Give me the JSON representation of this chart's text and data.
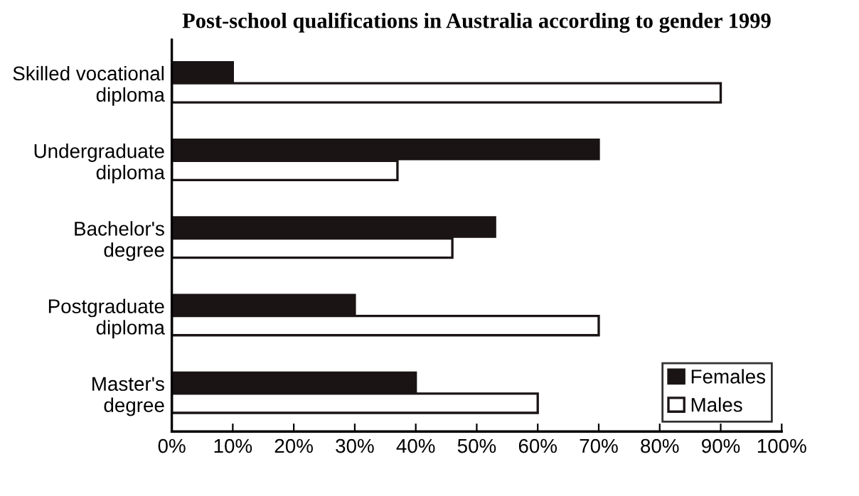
{
  "chart_data": {
    "type": "bar",
    "orientation": "horizontal",
    "title": "Post-school qualifications in Australia according to gender 1999",
    "categories": [
      "Skilled vocational\ndiploma",
      "Undergraduate\ndiploma",
      "Bachelor's\ndegree",
      "Postgraduate\ndiploma",
      "Master's\ndegree"
    ],
    "series": [
      {
        "name": "Females",
        "color": "#1a1414",
        "values": [
          10,
          70,
          53,
          30,
          40
        ]
      },
      {
        "name": "Males",
        "color": "#ffffff",
        "values": [
          90,
          37,
          46,
          70,
          60
        ]
      }
    ],
    "xlim": [
      0,
      100
    ],
    "xticks": [
      {
        "value": 0,
        "label": "0%"
      },
      {
        "value": 10,
        "label": "10%"
      },
      {
        "value": 20,
        "label": "20%"
      },
      {
        "value": 30,
        "label": "30%"
      },
      {
        "value": 40,
        "label": "40%"
      },
      {
        "value": 50,
        "label": "50%"
      },
      {
        "value": 60,
        "label": "60%"
      },
      {
        "value": 70,
        "label": "70%"
      },
      {
        "value": 80,
        "label": "80%"
      },
      {
        "value": 90,
        "label": "90%"
      },
      {
        "value": 100,
        "label": "100%"
      }
    ],
    "grid": false,
    "legend": "bottom right"
  }
}
